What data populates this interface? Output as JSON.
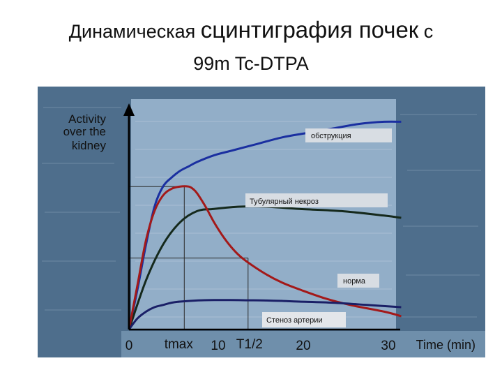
{
  "slide": {
    "title_part1": "Динамическая ",
    "title_part2": "сцинтиграфия почек",
    "title_part3": " с",
    "subtitle": "99m Tc-DTPA"
  },
  "chart_data": {
    "type": "line",
    "ylabel_lines": [
      "Activity",
      "over the",
      "kidney"
    ],
    "xlabel": "Time (min)",
    "xlim": [
      0,
      30
    ],
    "xticks": [
      0,
      10,
      20,
      30
    ],
    "markers": [
      {
        "label": "tmax",
        "x": 6.5,
        "y": 64
      },
      {
        "label": "T1/2",
        "x": 14,
        "y": 32
      }
    ],
    "series": [
      {
        "name": "обструкция",
        "color": "#1a2fa0",
        "x": [
          0,
          1,
          2,
          3,
          4,
          5,
          6,
          7,
          8,
          10,
          12,
          15,
          18,
          21,
          24,
          27,
          30,
          32
        ],
        "y": [
          0,
          18,
          38,
          55,
          64,
          68,
          71,
          73,
          75,
          78,
          80,
          83,
          86,
          88,
          90,
          92,
          93,
          93
        ]
      },
      {
        "name": "Тубулярный некроз",
        "color": "#15291c",
        "x": [
          0,
          2,
          4,
          6,
          8,
          10,
          13,
          16,
          20,
          25,
          30,
          32
        ],
        "y": [
          0,
          22,
          38,
          48,
          53,
          54,
          55,
          55,
          54,
          53,
          51,
          50
        ]
      },
      {
        "name": "норма",
        "color": "#a31919",
        "x": [
          0,
          1,
          2,
          3,
          4,
          5,
          6,
          7,
          7.5,
          8,
          9,
          10,
          11,
          12,
          13,
          14,
          16,
          18,
          20,
          23,
          26,
          30,
          32
        ],
        "y": [
          0,
          20,
          40,
          53,
          60,
          63,
          64,
          64,
          63,
          61,
          55,
          48,
          42,
          37,
          33,
          30,
          25,
          21,
          18,
          14,
          11,
          8,
          6
        ]
      },
      {
        "name": "Стеноз артерии",
        "color": "#1a1f66",
        "x": [
          0,
          1,
          2,
          3,
          4,
          5,
          6,
          8,
          10,
          12,
          14,
          16,
          18,
          20,
          24,
          28,
          32
        ],
        "y": [
          0,
          5,
          8,
          10,
          11,
          12,
          12.5,
          13,
          13.2,
          13.2,
          13.1,
          13,
          12.8,
          12.5,
          12,
          11,
          10
        ]
      }
    ]
  }
}
